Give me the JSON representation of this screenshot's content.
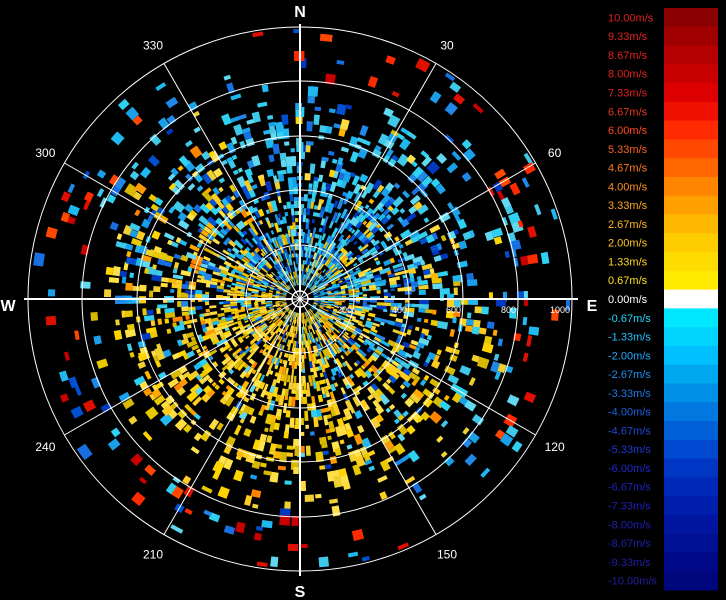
{
  "chart_data": {
    "type": "polar_heatmap",
    "title": "",
    "compass": {
      "north": "N",
      "east": "E",
      "south": "S",
      "west": "W"
    },
    "angle_ticks": [
      "30",
      "60",
      "120",
      "150",
      "210",
      "240",
      "300",
      "330"
    ],
    "range_ticks": [
      "200",
      "400",
      "600",
      "800",
      "1000"
    ],
    "range_max": 1000,
    "colorbar": {
      "labels": [
        "10.00m/s",
        "9.33m/s",
        "8.67m/s",
        "8.00m/s",
        "7.33m/s",
        "6.67m/s",
        "6.00m/s",
        "5.33m/s",
        "4.67m/s",
        "4.00m/s",
        "3.33m/s",
        "2.67m/s",
        "2.00m/s",
        "1.33m/s",
        "0.67m/s",
        "0.00m/s",
        "-0.67m/s",
        "-1.33m/s",
        "-2.00m/s",
        "-2.67m/s",
        "-3.33m/s",
        "-4.00m/s",
        "-4.67m/s",
        "-5.33m/s",
        "-6.00m/s",
        "-6.67m/s",
        "-7.33m/s",
        "-8.00m/s",
        "-8.67m/s",
        "-9.33m/s",
        "-10.00m/s"
      ],
      "colors": [
        "#8b0000",
        "#a00000",
        "#b40000",
        "#c80000",
        "#dc0000",
        "#f01000",
        "#ff2a00",
        "#ff4800",
        "#ff6600",
        "#ff8400",
        "#ffa000",
        "#ffb800",
        "#ffcc00",
        "#ffdc00",
        "#ffea00",
        "#ffffff",
        "#00e8ff",
        "#00d4ff",
        "#00c0ff",
        "#00a8f0",
        "#0090e8",
        "#0078e0",
        "#0060d8",
        "#0048d0",
        "#0036c4",
        "#0028b8",
        "#001eac",
        "#0016a0",
        "#001094",
        "#000a88",
        "#00067c"
      ],
      "label_colors": [
        "#e02020",
        "#e02020",
        "#e02020",
        "#e02020",
        "#e02020",
        "#e03a20",
        "#ff4a20",
        "#ff6020",
        "#ff7a20",
        "#ff9020",
        "#ffa820",
        "#ffb820",
        "#ffc820",
        "#ffd820",
        "#ffe020",
        "#ffffff",
        "#20d8ff",
        "#20c0ff",
        "#20a8ff",
        "#2090f0",
        "#2078e8",
        "#2060e0",
        "#2048d8",
        "#2038d0",
        "#2028c8",
        "#2020c0",
        "#2020b8",
        "#2020b0",
        "#2020a8",
        "#2020a0",
        "#202098"
      ]
    },
    "structure_summary": "Radial velocity returns around radar center; positive (yellow/orange) concentrated south and west within ~400 range; negative (cyan/blue) concentrated north and north-east; sparse red and blue returns at long range."
  }
}
